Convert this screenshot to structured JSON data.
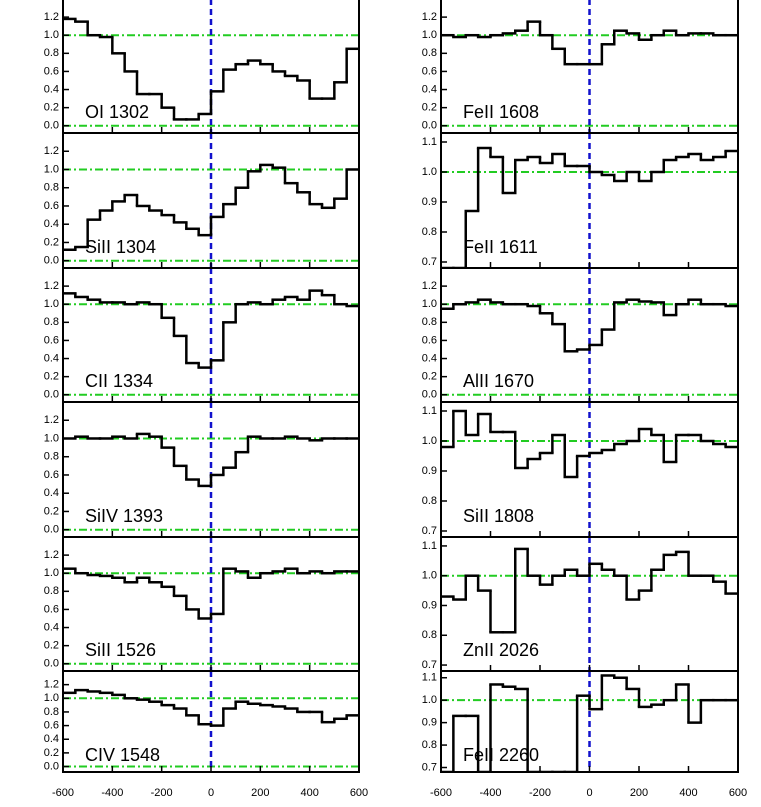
{
  "chart_data": [
    {
      "type": "line",
      "title": "OI 1302",
      "x": [
        -575,
        -525,
        -475,
        -425,
        -375,
        -325,
        -275,
        -225,
        -175,
        -125,
        -75,
        -25,
        25,
        75,
        125,
        175,
        225,
        275,
        325,
        375,
        425,
        475,
        525,
        575
      ],
      "values": [
        1.18,
        1.15,
        1.0,
        0.98,
        0.8,
        0.6,
        0.35,
        0.35,
        0.2,
        0.07,
        0.07,
        0.13,
        0.38,
        0.62,
        0.68,
        0.72,
        0.68,
        0.6,
        0.55,
        0.5,
        0.3,
        0.3,
        0.48,
        0.85
      ],
      "color": "#000000",
      "xlim": [
        -600,
        600
      ],
      "xticks": [
        -600,
        -400,
        -200,
        0,
        200,
        400,
        600
      ],
      "ylim": [
        -0.08,
        1.4
      ],
      "yticks": [
        {
          "value": 0,
          "label": "0.0"
        },
        0.2,
        0.4,
        0.6,
        0.8,
        {
          "value": 1,
          "label": "1.0"
        },
        1.2
      ],
      "hlines": [
        0,
        1
      ],
      "hline_color": "#22cc22",
      "vline": 0,
      "vline_color": "#1111cc"
    },
    {
      "type": "line",
      "title": "SiII 1304",
      "x": [
        -575,
        -525,
        -475,
        -425,
        -375,
        -325,
        -275,
        -225,
        -175,
        -125,
        -75,
        -25,
        25,
        75,
        125,
        175,
        225,
        275,
        325,
        375,
        425,
        475,
        525,
        575
      ],
      "values": [
        0.12,
        0.15,
        0.45,
        0.55,
        0.65,
        0.72,
        0.6,
        0.55,
        0.5,
        0.42,
        0.35,
        0.28,
        0.48,
        0.62,
        0.8,
        0.98,
        1.05,
        1.02,
        0.85,
        0.75,
        0.62,
        0.58,
        0.68,
        1.0
      ],
      "color": "#000000",
      "xlim": [
        -600,
        600
      ],
      "xticks": [
        -600,
        -400,
        -200,
        0,
        200,
        400,
        600
      ],
      "ylim": [
        -0.08,
        1.4
      ],
      "yticks": [
        {
          "value": 0,
          "label": "0.0"
        },
        0.2,
        0.4,
        0.6,
        0.8,
        {
          "value": 1,
          "label": "1.0"
        },
        1.2
      ],
      "hlines": [
        0,
        1
      ],
      "hline_color": "#22cc22",
      "vline": 0,
      "vline_color": "#1111cc"
    },
    {
      "type": "line",
      "title": "CII 1334",
      "x": [
        -575,
        -525,
        -475,
        -425,
        -375,
        -325,
        -275,
        -225,
        -175,
        -125,
        -75,
        -25,
        25,
        75,
        125,
        175,
        225,
        275,
        325,
        375,
        425,
        475,
        525,
        575
      ],
      "values": [
        1.12,
        1.08,
        1.05,
        1.02,
        1.02,
        1.0,
        1.02,
        1.0,
        0.85,
        0.65,
        0.35,
        0.3,
        0.38,
        0.8,
        1.0,
        1.02,
        1.0,
        1.05,
        1.08,
        1.05,
        1.15,
        1.1,
        1.0,
        0.98
      ],
      "color": "#000000",
      "xlim": [
        -600,
        600
      ],
      "xticks": [
        -600,
        -400,
        -200,
        0,
        200,
        400,
        600
      ],
      "ylim": [
        -0.08,
        1.4
      ],
      "yticks": [
        {
          "value": 0,
          "label": "0.0"
        },
        0.2,
        0.4,
        0.6,
        0.8,
        {
          "value": 1,
          "label": "1.0"
        },
        1.2
      ],
      "hlines": [
        0,
        1
      ],
      "hline_color": "#22cc22",
      "vline": 0,
      "vline_color": "#1111cc"
    },
    {
      "type": "line",
      "title": "SiIV 1393",
      "x": [
        -575,
        -525,
        -475,
        -425,
        -375,
        -325,
        -275,
        -225,
        -175,
        -125,
        -75,
        -25,
        25,
        75,
        125,
        175,
        225,
        275,
        325,
        375,
        425,
        475,
        525,
        575
      ],
      "values": [
        1.0,
        1.02,
        1.0,
        1.0,
        1.02,
        1.0,
        1.05,
        1.02,
        0.9,
        0.7,
        0.55,
        0.48,
        0.6,
        0.68,
        0.85,
        1.02,
        1.0,
        1.0,
        1.02,
        1.0,
        0.98,
        1.0,
        1.0,
        1.0
      ],
      "color": "#000000",
      "xlim": [
        -600,
        600
      ],
      "xticks": [
        -600,
        -400,
        -200,
        0,
        200,
        400,
        600
      ],
      "ylim": [
        -0.08,
        1.4
      ],
      "yticks": [
        {
          "value": 0,
          "label": "0.0"
        },
        0.2,
        0.4,
        0.6,
        0.8,
        {
          "value": 1,
          "label": "1.0"
        },
        1.2
      ],
      "hlines": [
        0,
        1
      ],
      "hline_color": "#22cc22",
      "vline": 0,
      "vline_color": "#1111cc"
    },
    {
      "type": "line",
      "title": "SiII 1526",
      "x": [
        -575,
        -525,
        -475,
        -425,
        -375,
        -325,
        -275,
        -225,
        -175,
        -125,
        -75,
        -25,
        25,
        75,
        125,
        175,
        225,
        275,
        325,
        375,
        425,
        475,
        525,
        575
      ],
      "values": [
        1.05,
        1.0,
        0.98,
        0.97,
        0.95,
        0.9,
        0.95,
        0.9,
        0.85,
        0.75,
        0.6,
        0.5,
        0.55,
        1.05,
        1.02,
        0.95,
        1.0,
        1.02,
        1.05,
        1.0,
        1.02,
        1.0,
        1.02,
        1.02
      ],
      "color": "#000000",
      "xlim": [
        -600,
        600
      ],
      "xticks": [
        -600,
        -400,
        -200,
        0,
        200,
        400,
        600
      ],
      "ylim": [
        -0.08,
        1.4
      ],
      "yticks": [
        {
          "value": 0,
          "label": "0.0"
        },
        0.2,
        0.4,
        0.6,
        0.8,
        {
          "value": 1,
          "label": "1.0"
        },
        1.2
      ],
      "hlines": [
        0,
        1
      ],
      "hline_color": "#22cc22",
      "vline": 0,
      "vline_color": "#1111cc"
    },
    {
      "type": "line",
      "title": "CIV 1548",
      "x": [
        -575,
        -525,
        -475,
        -425,
        -375,
        -325,
        -275,
        -225,
        -175,
        -125,
        -75,
        -25,
        25,
        75,
        125,
        175,
        225,
        275,
        325,
        375,
        425,
        475,
        525,
        575
      ],
      "values": [
        1.08,
        1.12,
        1.1,
        1.08,
        1.05,
        1.0,
        0.98,
        0.95,
        0.9,
        0.85,
        0.75,
        0.62,
        0.6,
        0.85,
        0.95,
        0.92,
        0.9,
        0.88,
        0.85,
        0.8,
        0.8,
        0.65,
        0.7,
        0.75
      ],
      "color": "#000000",
      "xlim": [
        -600,
        600
      ],
      "xticks": [
        -600,
        -400,
        -200,
        0,
        200,
        400,
        600
      ],
      "ylim": [
        -0.08,
        1.4
      ],
      "yticks": [
        {
          "value": 0,
          "label": "0.0"
        },
        0.2,
        0.4,
        0.6,
        0.8,
        {
          "value": 1,
          "label": "1.0"
        },
        1.2
      ],
      "hlines": [
        0,
        1
      ],
      "hline_color": "#22cc22",
      "vline": 0,
      "vline_color": "#1111cc"
    },
    {
      "type": "line",
      "title": "FeII 1608",
      "x": [
        -575,
        -525,
        -475,
        -425,
        -375,
        -325,
        -275,
        -225,
        -175,
        -125,
        -75,
        -25,
        25,
        75,
        125,
        175,
        225,
        275,
        325,
        375,
        425,
        475,
        525,
        575
      ],
      "values": [
        1.0,
        0.98,
        1.0,
        0.98,
        1.0,
        1.02,
        1.05,
        1.15,
        1.0,
        0.85,
        0.68,
        0.68,
        0.68,
        0.9,
        1.05,
        1.02,
        0.95,
        1.0,
        1.05,
        1.0,
        1.02,
        1.02,
        1.0,
        1.0
      ],
      "color": "#000000",
      "xlim": [
        -600,
        600
      ],
      "xticks": [
        -600,
        -400,
        -200,
        0,
        200,
        400,
        600
      ],
      "ylim": [
        -0.08,
        1.4
      ],
      "yticks": [
        {
          "value": 0,
          "label": "0.0"
        },
        0.2,
        0.4,
        0.6,
        0.8,
        {
          "value": 1,
          "label": "1.0"
        },
        1.2
      ],
      "hlines": [
        0,
        1
      ],
      "hline_color": "#22cc22",
      "vline": 0,
      "vline_color": "#1111cc"
    },
    {
      "type": "line",
      "title": "FeII 1611",
      "x": [
        -575,
        -525,
        -475,
        -425,
        -375,
        -325,
        -275,
        -225,
        -175,
        -125,
        -75,
        -25,
        25,
        75,
        125,
        175,
        225,
        275,
        325,
        375,
        425,
        475,
        525,
        575
      ],
      "values": [
        0.68,
        0.68,
        0.87,
        1.08,
        1.05,
        0.93,
        1.04,
        1.05,
        1.03,
        1.06,
        1.02,
        1.02,
        1.0,
        0.99,
        0.97,
        1.0,
        0.97,
        1.0,
        1.04,
        1.05,
        1.06,
        1.04,
        1.05,
        1.07
      ],
      "color": "#000000",
      "xlim": [
        -600,
        600
      ],
      "xticks": [
        -600,
        -400,
        -200,
        0,
        200,
        400,
        600
      ],
      "ylim": [
        0.68,
        1.13
      ],
      "yticks": [
        0.7,
        0.8,
        0.9,
        {
          "value": 1,
          "label": "1.0"
        },
        1.1
      ],
      "hlines": [
        1
      ],
      "hline_color": "#22cc22",
      "vline": 0,
      "vline_color": "#1111cc"
    },
    {
      "type": "line",
      "title": "AlII 1670",
      "x": [
        -575,
        -525,
        -475,
        -425,
        -375,
        -325,
        -275,
        -225,
        -175,
        -125,
        -75,
        -25,
        25,
        75,
        125,
        175,
        225,
        275,
        325,
        375,
        425,
        475,
        525,
        575
      ],
      "values": [
        0.95,
        1.0,
        1.02,
        1.05,
        1.02,
        1.0,
        1.0,
        0.98,
        0.9,
        0.78,
        0.48,
        0.5,
        0.55,
        0.72,
        1.02,
        1.05,
        1.03,
        1.02,
        0.88,
        1.0,
        1.05,
        1.0,
        1.0,
        0.98
      ],
      "color": "#000000",
      "xlim": [
        -600,
        600
      ],
      "xticks": [
        -600,
        -400,
        -200,
        0,
        200,
        400,
        600
      ],
      "ylim": [
        -0.08,
        1.4
      ],
      "yticks": [
        {
          "value": 0,
          "label": "0.0"
        },
        0.2,
        0.4,
        0.6,
        0.8,
        {
          "value": 1,
          "label": "1.0"
        },
        1.2
      ],
      "hlines": [
        0,
        1
      ],
      "hline_color": "#22cc22",
      "vline": 0,
      "vline_color": "#1111cc"
    },
    {
      "type": "line",
      "title": "SiII 1808",
      "x": [
        -575,
        -525,
        -475,
        -425,
        -375,
        -325,
        -275,
        -225,
        -175,
        -125,
        -75,
        -25,
        25,
        75,
        125,
        175,
        225,
        275,
        325,
        375,
        425,
        475,
        525,
        575
      ],
      "values": [
        0.98,
        1.1,
        1.02,
        1.09,
        1.03,
        1.03,
        0.91,
        0.94,
        0.96,
        1.02,
        0.88,
        0.95,
        0.96,
        0.97,
        0.99,
        1.0,
        1.04,
        1.02,
        0.93,
        1.02,
        1.02,
        1.0,
        0.99,
        0.98
      ],
      "color": "#000000",
      "xlim": [
        -600,
        600
      ],
      "xticks": [
        -600,
        -400,
        -200,
        0,
        200,
        400,
        600
      ],
      "ylim": [
        0.68,
        1.13
      ],
      "yticks": [
        0.7,
        0.8,
        0.9,
        {
          "value": 1,
          "label": "1.0"
        },
        1.1
      ],
      "hlines": [
        1
      ],
      "hline_color": "#22cc22",
      "vline": 0,
      "vline_color": "#1111cc"
    },
    {
      "type": "line",
      "title": "ZnII 2026",
      "x": [
        -575,
        -525,
        -475,
        -425,
        -375,
        -325,
        -275,
        -225,
        -175,
        -125,
        -75,
        -25,
        25,
        75,
        125,
        175,
        225,
        275,
        325,
        375,
        425,
        475,
        525,
        575
      ],
      "values": [
        0.93,
        0.92,
        1.0,
        0.95,
        0.81,
        0.81,
        1.09,
        1.0,
        0.97,
        1.0,
        1.02,
        1.0,
        1.04,
        1.02,
        1.0,
        0.92,
        0.95,
        1.02,
        1.07,
        1.08,
        1.0,
        1.0,
        0.98,
        0.94
      ],
      "color": "#000000",
      "xlim": [
        -600,
        600
      ],
      "xticks": [
        -600,
        -400,
        -200,
        0,
        200,
        400,
        600
      ],
      "ylim": [
        0.68,
        1.13
      ],
      "yticks": [
        0.7,
        0.8,
        0.9,
        {
          "value": 1,
          "label": "1.0"
        },
        1.1
      ],
      "hlines": [
        1
      ],
      "hline_color": "#22cc22",
      "vline": 0,
      "vline_color": "#1111cc"
    },
    {
      "type": "line",
      "title": "FeII 2260",
      "x": [
        -575,
        -525,
        -475,
        -425,
        -375,
        -325,
        -275,
        -225,
        -175,
        -125,
        -75,
        -25,
        25,
        75,
        125,
        175,
        225,
        275,
        325,
        375,
        425,
        475,
        525,
        575
      ],
      "values": [
        0.68,
        0.93,
        0.93,
        0.68,
        1.07,
        1.06,
        1.05,
        0.68,
        0.68,
        0.68,
        0.68,
        1.02,
        0.96,
        1.11,
        1.1,
        1.05,
        0.97,
        0.98,
        1.0,
        1.07,
        0.9,
        1.0,
        1.0,
        1.0
      ],
      "color": "#000000",
      "xlim": [
        -600,
        600
      ],
      "xticks": [
        -600,
        -400,
        -200,
        0,
        200,
        400,
        600
      ],
      "ylim": [
        0.68,
        1.13
      ],
      "yticks": [
        0.7,
        0.8,
        0.9,
        {
          "value": 1,
          "label": "1.0"
        },
        1.1
      ],
      "hlines": [
        1
      ],
      "hline_color": "#22cc22",
      "vline": 0,
      "vline_color": "#1111cc"
    }
  ]
}
